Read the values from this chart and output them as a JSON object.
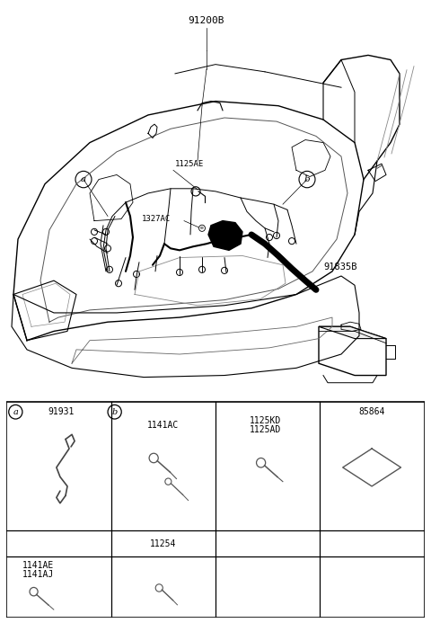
{
  "bg_color": "#ffffff",
  "lc": "#000000",
  "tc": "#000000",
  "gray": "#888888",
  "title_label": "91200B",
  "label_91835B": "91835B",
  "label_a": "a",
  "label_b": "b",
  "label_1125AE": "1125AE",
  "label_1327AC": "1327AC",
  "fs_small": 6.5,
  "fs_medium": 7.5,
  "fs_tiny": 5.5,
  "table": {
    "col0_header_circle": "a",
    "col0_header_text": "91931",
    "col1_header_circle": "b",
    "col3_header_text": "85864",
    "row1_col1_label": "1141AC",
    "row1_col2_label1": "1125KD",
    "row1_col2_label2": "1125AD",
    "row2_col1_label": "11254",
    "row3_col0_label1": "1141AE",
    "row3_col0_label2": "1141AJ"
  }
}
